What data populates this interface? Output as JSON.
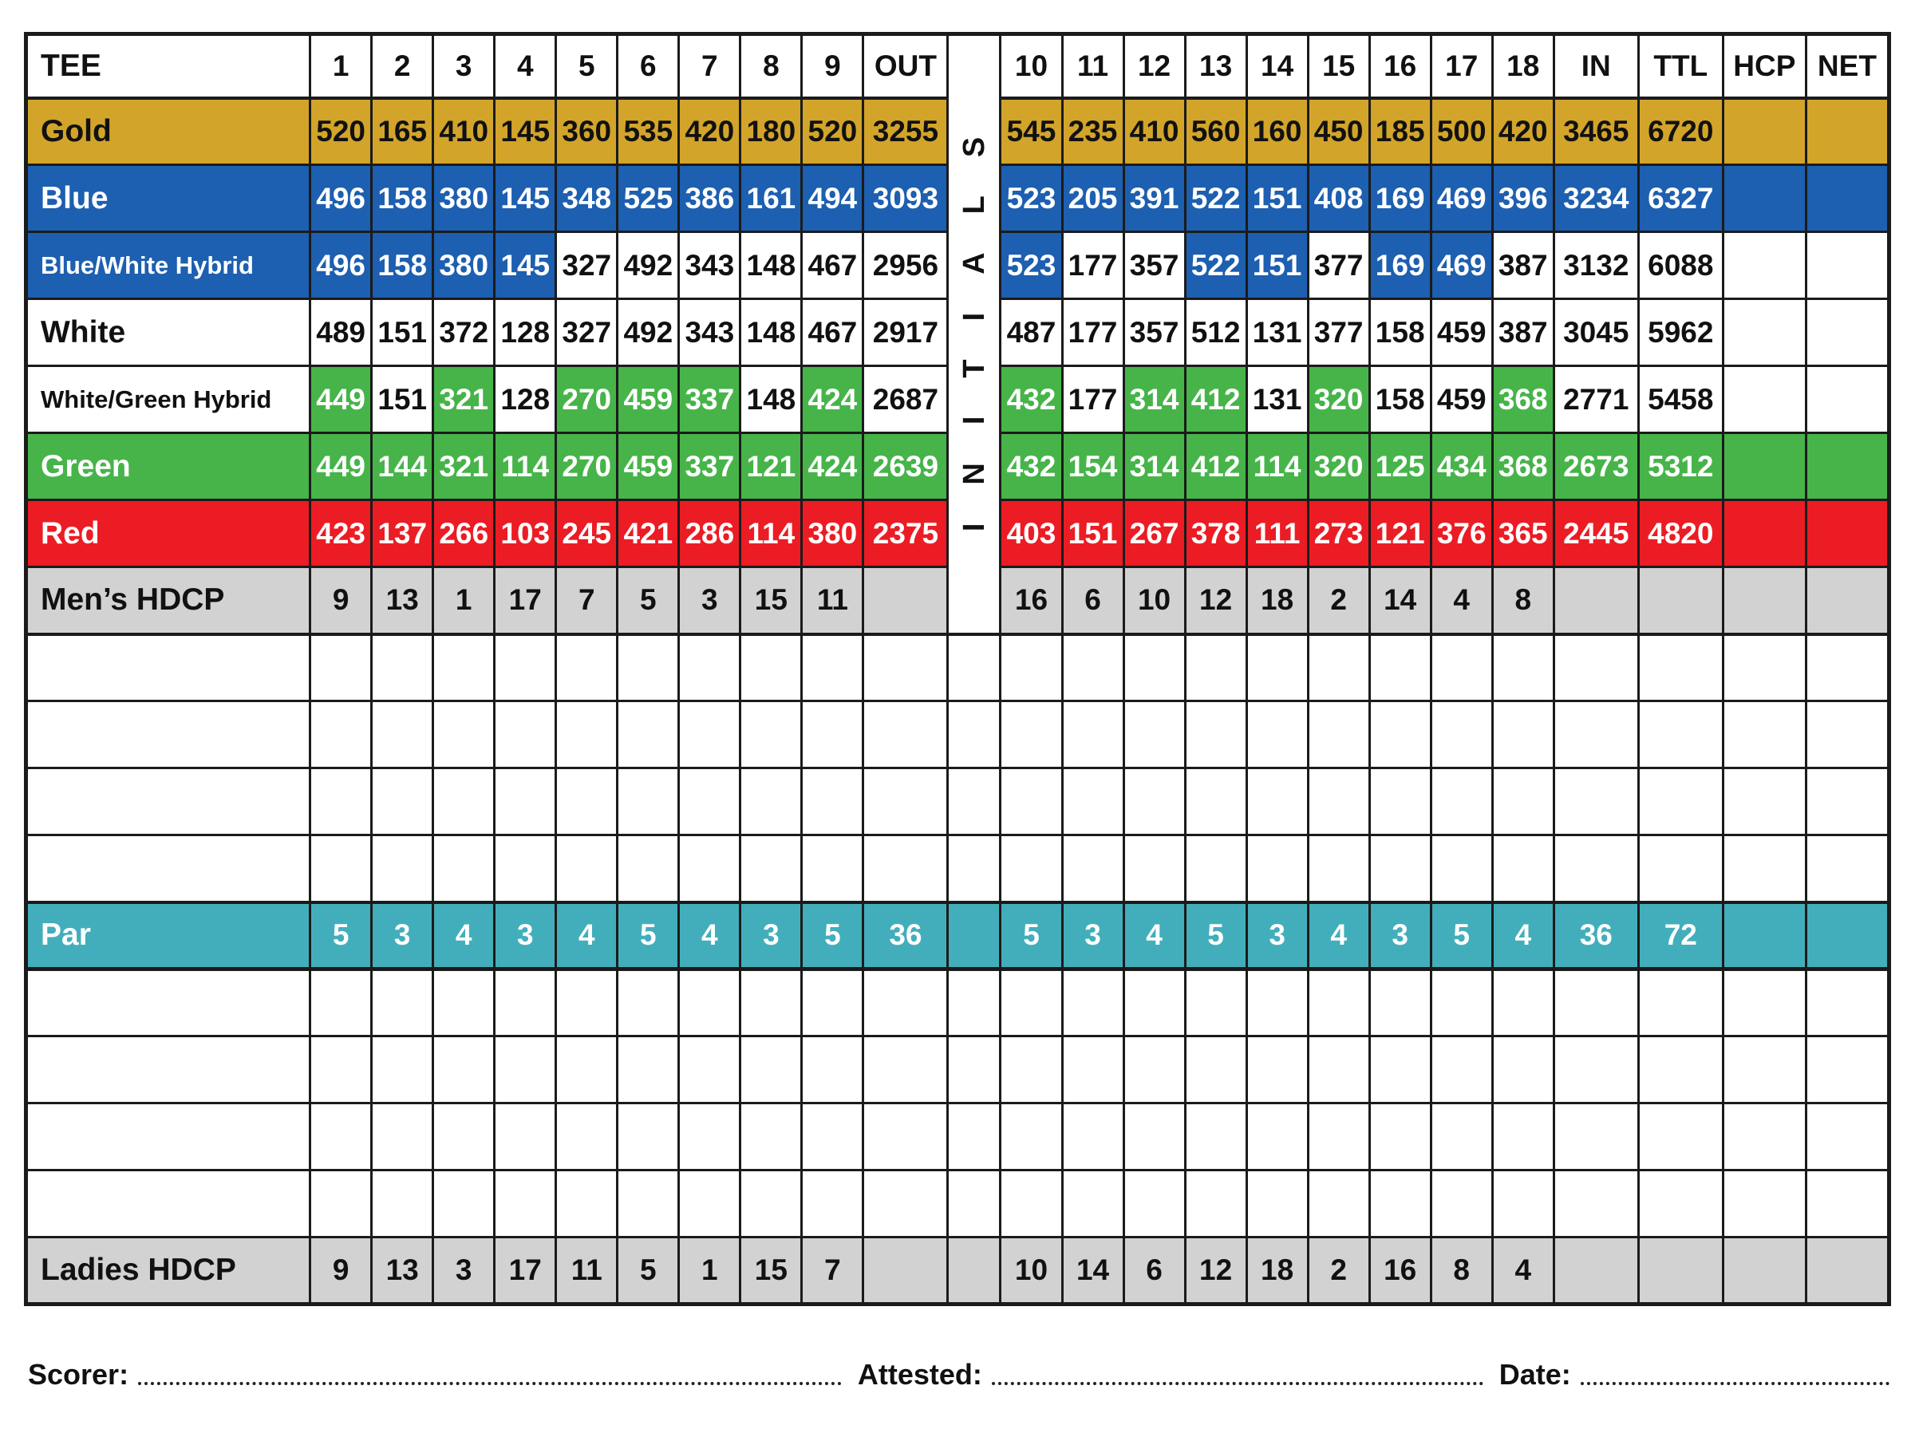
{
  "colors": {
    "gold": "#D2A429",
    "blue": "#1D5FB0",
    "green": "#47B44A",
    "red": "#EC1C24",
    "teal": "#43AEBB",
    "gray": "#D2D2D2",
    "border": "#1B1B1B"
  },
  "footer": {
    "scorer_label": "Scorer:",
    "attested_label": "Attested:",
    "date_label": "Date:"
  },
  "table": {
    "columns": [
      "tee",
      "hole-1",
      "hole-2",
      "hole-3",
      "hole-4",
      "hole-5",
      "hole-6",
      "hole-7",
      "hole-8",
      "hole-9",
      "out",
      "initials",
      "hole-10",
      "hole-11",
      "hole-12",
      "hole-13",
      "hole-14",
      "hole-15",
      "hole-16",
      "hole-17",
      "hole-18",
      "in",
      "ttl",
      "hcp",
      "net"
    ],
    "rows": [
      {
        "name": "header-row",
        "cells": [
          [
            "TEE",
            "h"
          ],
          [
            "1",
            "h"
          ],
          [
            "2",
            "h"
          ],
          [
            "3",
            "h"
          ],
          [
            "4",
            "h"
          ],
          [
            "5",
            "h"
          ],
          [
            "6",
            "h"
          ],
          [
            "7",
            "h"
          ],
          [
            "8",
            "h"
          ],
          [
            "9",
            "h"
          ],
          [
            "OUT",
            "h"
          ],
          {
            "t": "INITIALS",
            "s": "init",
            "rowspan": 9
          },
          [
            "10",
            "h"
          ],
          [
            "11",
            "h"
          ],
          [
            "12",
            "h"
          ],
          [
            "13",
            "h"
          ],
          [
            "14",
            "h"
          ],
          [
            "15",
            "h"
          ],
          [
            "16",
            "h"
          ],
          [
            "17",
            "h"
          ],
          [
            "18",
            "h"
          ],
          [
            "IN",
            "h"
          ],
          [
            "TTL",
            "h"
          ],
          [
            "HCP",
            "h"
          ],
          [
            "NET",
            "h"
          ]
        ]
      },
      {
        "name": "gold-row",
        "cells": [
          [
            "Gold",
            "g"
          ],
          [
            "520",
            "g"
          ],
          [
            "165",
            "g"
          ],
          [
            "410",
            "g"
          ],
          [
            "145",
            "g"
          ],
          [
            "360",
            "g"
          ],
          [
            "535",
            "g"
          ],
          [
            "420",
            "g"
          ],
          [
            "180",
            "g"
          ],
          [
            "520",
            "g"
          ],
          [
            "3255",
            "g"
          ],
          [
            "545",
            "g"
          ],
          [
            "235",
            "g"
          ],
          [
            "410",
            "g"
          ],
          [
            "560",
            "g"
          ],
          [
            "160",
            "g"
          ],
          [
            "450",
            "g"
          ],
          [
            "185",
            "g"
          ],
          [
            "500",
            "g"
          ],
          [
            "420",
            "g"
          ],
          [
            "3465",
            "g"
          ],
          [
            "6720",
            "g"
          ],
          [
            "",
            "g"
          ],
          [
            "",
            "g"
          ]
        ]
      },
      {
        "name": "blue-row",
        "cells": [
          [
            "Blue",
            "b"
          ],
          [
            "496",
            "b"
          ],
          [
            "158",
            "b"
          ],
          [
            "380",
            "b"
          ],
          [
            "145",
            "b"
          ],
          [
            "348",
            "b"
          ],
          [
            "525",
            "b"
          ],
          [
            "386",
            "b"
          ],
          [
            "161",
            "b"
          ],
          [
            "494",
            "b"
          ],
          [
            "3093",
            "b"
          ],
          [
            "523",
            "b"
          ],
          [
            "205",
            "b"
          ],
          [
            "391",
            "b"
          ],
          [
            "522",
            "b"
          ],
          [
            "151",
            "b"
          ],
          [
            "408",
            "b"
          ],
          [
            "169",
            "b"
          ],
          [
            "469",
            "b"
          ],
          [
            "396",
            "b"
          ],
          [
            "3234",
            "b"
          ],
          [
            "6327",
            "b"
          ],
          [
            "",
            "b"
          ],
          [
            "",
            "b"
          ]
        ]
      },
      {
        "name": "blue-white-hybrid-row",
        "cells": [
          [
            "Blue/White Hybrid",
            "b"
          ],
          [
            "496",
            "b"
          ],
          [
            "158",
            "b"
          ],
          [
            "380",
            "b"
          ],
          [
            "145",
            "b"
          ],
          [
            "327",
            "w"
          ],
          [
            "492",
            "w"
          ],
          [
            "343",
            "w"
          ],
          [
            "148",
            "w"
          ],
          [
            "467",
            "w"
          ],
          [
            "2956",
            "w"
          ],
          [
            "523",
            "b"
          ],
          [
            "177",
            "w"
          ],
          [
            "357",
            "w"
          ],
          [
            "522",
            "b"
          ],
          [
            "151",
            "b"
          ],
          [
            "377",
            "w"
          ],
          [
            "169",
            "b"
          ],
          [
            "469",
            "b"
          ],
          [
            "387",
            "w"
          ],
          [
            "3132",
            "w"
          ],
          [
            "6088",
            "w"
          ],
          [
            "",
            "w"
          ],
          [
            "",
            "w"
          ]
        ]
      },
      {
        "name": "white-row",
        "cells": [
          [
            "White",
            "w"
          ],
          [
            "489",
            "w"
          ],
          [
            "151",
            "w"
          ],
          [
            "372",
            "w"
          ],
          [
            "128",
            "w"
          ],
          [
            "327",
            "w"
          ],
          [
            "492",
            "w"
          ],
          [
            "343",
            "w"
          ],
          [
            "148",
            "w"
          ],
          [
            "467",
            "w"
          ],
          [
            "2917",
            "w"
          ],
          [
            "487",
            "w"
          ],
          [
            "177",
            "w"
          ],
          [
            "357",
            "w"
          ],
          [
            "512",
            "w"
          ],
          [
            "131",
            "w"
          ],
          [
            "377",
            "w"
          ],
          [
            "158",
            "w"
          ],
          [
            "459",
            "w"
          ],
          [
            "387",
            "w"
          ],
          [
            "3045",
            "w"
          ],
          [
            "5962",
            "w"
          ],
          [
            "",
            "w"
          ],
          [
            "",
            "w"
          ]
        ]
      },
      {
        "name": "white-green-hybrid-row",
        "cells": [
          [
            "White/Green Hybrid",
            "w"
          ],
          [
            "449",
            "gr"
          ],
          [
            "151",
            "w"
          ],
          [
            "321",
            "gr"
          ],
          [
            "128",
            "w"
          ],
          [
            "270",
            "gr"
          ],
          [
            "459",
            "gr"
          ],
          [
            "337",
            "gr"
          ],
          [
            "148",
            "w"
          ],
          [
            "424",
            "gr"
          ],
          [
            "2687",
            "w"
          ],
          [
            "432",
            "gr"
          ],
          [
            "177",
            "w"
          ],
          [
            "314",
            "gr"
          ],
          [
            "412",
            "gr"
          ],
          [
            "131",
            "w"
          ],
          [
            "320",
            "gr"
          ],
          [
            "158",
            "w"
          ],
          [
            "459",
            "w"
          ],
          [
            "368",
            "gr"
          ],
          [
            "2771",
            "w"
          ],
          [
            "5458",
            "w"
          ],
          [
            "",
            "w"
          ],
          [
            "",
            "w"
          ]
        ]
      },
      {
        "name": "green-row",
        "cells": [
          [
            "Green",
            "gr"
          ],
          [
            "449",
            "gr"
          ],
          [
            "144",
            "gr"
          ],
          [
            "321",
            "gr"
          ],
          [
            "114",
            "gr"
          ],
          [
            "270",
            "gr"
          ],
          [
            "459",
            "gr"
          ],
          [
            "337",
            "gr"
          ],
          [
            "121",
            "gr"
          ],
          [
            "424",
            "gr"
          ],
          [
            "2639",
            "gr"
          ],
          [
            "432",
            "gr"
          ],
          [
            "154",
            "gr"
          ],
          [
            "314",
            "gr"
          ],
          [
            "412",
            "gr"
          ],
          [
            "114",
            "gr"
          ],
          [
            "320",
            "gr"
          ],
          [
            "125",
            "gr"
          ],
          [
            "434",
            "gr"
          ],
          [
            "368",
            "gr"
          ],
          [
            "2673",
            "gr"
          ],
          [
            "5312",
            "gr"
          ],
          [
            "",
            "gr"
          ],
          [
            "",
            "gr"
          ]
        ]
      },
      {
        "name": "red-row",
        "cells": [
          [
            "Red",
            "r"
          ],
          [
            "423",
            "r"
          ],
          [
            "137",
            "r"
          ],
          [
            "266",
            "r"
          ],
          [
            "103",
            "r"
          ],
          [
            "245",
            "r"
          ],
          [
            "421",
            "r"
          ],
          [
            "286",
            "r"
          ],
          [
            "114",
            "r"
          ],
          [
            "380",
            "r"
          ],
          [
            "2375",
            "r"
          ],
          [
            "403",
            "r"
          ],
          [
            "151",
            "r"
          ],
          [
            "267",
            "r"
          ],
          [
            "378",
            "r"
          ],
          [
            "111",
            "r"
          ],
          [
            "273",
            "r"
          ],
          [
            "121",
            "r"
          ],
          [
            "376",
            "r"
          ],
          [
            "365",
            "r"
          ],
          [
            "2445",
            "r"
          ],
          [
            "4820",
            "r"
          ],
          [
            "",
            "r"
          ],
          [
            "",
            "r"
          ]
        ]
      },
      {
        "name": "mens-hdcp-row",
        "cells": [
          [
            "Men’s HDCP",
            "gy"
          ],
          [
            "9",
            "gy"
          ],
          [
            "13",
            "gy"
          ],
          [
            "1",
            "gy"
          ],
          [
            "17",
            "gy"
          ],
          [
            "7",
            "gy"
          ],
          [
            "5",
            "gy"
          ],
          [
            "3",
            "gy"
          ],
          [
            "15",
            "gy"
          ],
          [
            "11",
            "gy"
          ],
          [
            "",
            "gy"
          ],
          [
            "16",
            "gy"
          ],
          [
            "6",
            "gy"
          ],
          [
            "10",
            "gy"
          ],
          [
            "12",
            "gy"
          ],
          [
            "18",
            "gy"
          ],
          [
            "2",
            "gy"
          ],
          [
            "14",
            "gy"
          ],
          [
            "4",
            "gy"
          ],
          [
            "8",
            "gy"
          ],
          [
            "",
            "gy"
          ],
          [
            "",
            "gy"
          ],
          [
            "",
            "gy"
          ],
          [
            "",
            "gy"
          ]
        ]
      },
      {
        "name": "blank-row-1",
        "writable": true,
        "count": 25,
        "fill": {
          "t": "",
          "s": "w"
        }
      },
      {
        "name": "blank-row-2",
        "writable": true,
        "count": 25,
        "fill": {
          "t": "",
          "s": "w"
        }
      },
      {
        "name": "blank-row-3",
        "writable": true,
        "count": 25,
        "fill": {
          "t": "",
          "s": "w"
        }
      },
      {
        "name": "blank-row-4",
        "writable": true,
        "count": 25,
        "fill": {
          "t": "",
          "s": "w"
        }
      },
      {
        "name": "par-row",
        "cells": [
          [
            "Par",
            "t"
          ],
          [
            "5",
            "t"
          ],
          [
            "3",
            "t"
          ],
          [
            "4",
            "t"
          ],
          [
            "3",
            "t"
          ],
          [
            "4",
            "t"
          ],
          [
            "5",
            "t"
          ],
          [
            "4",
            "t"
          ],
          [
            "3",
            "t"
          ],
          [
            "5",
            "t"
          ],
          [
            "36",
            "t"
          ],
          [
            "",
            "t"
          ],
          [
            "5",
            "t"
          ],
          [
            "3",
            "t"
          ],
          [
            "4",
            "t"
          ],
          [
            "5",
            "t"
          ],
          [
            "3",
            "t"
          ],
          [
            "4",
            "t"
          ],
          [
            "3",
            "t"
          ],
          [
            "5",
            "t"
          ],
          [
            "4",
            "t"
          ],
          [
            "36",
            "t"
          ],
          [
            "72",
            "t"
          ],
          [
            "",
            "t"
          ],
          [
            "",
            "t"
          ]
        ]
      },
      {
        "name": "blank-row-5",
        "writable": true,
        "count": 25,
        "fill": {
          "t": "",
          "s": "w"
        }
      },
      {
        "name": "blank-row-6",
        "writable": true,
        "count": 25,
        "fill": {
          "t": "",
          "s": "w"
        }
      },
      {
        "name": "blank-row-7",
        "writable": true,
        "count": 25,
        "fill": {
          "t": "",
          "s": "w"
        }
      },
      {
        "name": "blank-row-8",
        "writable": true,
        "count": 25,
        "fill": {
          "t": "",
          "s": "w"
        }
      },
      {
        "name": "ladies-hdcp-row",
        "cells": [
          [
            "Ladies HDCP",
            "gy"
          ],
          [
            "9",
            "gy"
          ],
          [
            "13",
            "gy"
          ],
          [
            "3",
            "gy"
          ],
          [
            "17",
            "gy"
          ],
          [
            "11",
            "gy"
          ],
          [
            "5",
            "gy"
          ],
          [
            "1",
            "gy"
          ],
          [
            "15",
            "gy"
          ],
          [
            "7",
            "gy"
          ],
          [
            "",
            "gy"
          ],
          [
            "",
            "gy"
          ],
          [
            "10",
            "gy"
          ],
          [
            "14",
            "gy"
          ],
          [
            "6",
            "gy"
          ],
          [
            "12",
            "gy"
          ],
          [
            "18",
            "gy"
          ],
          [
            "2",
            "gy"
          ],
          [
            "16",
            "gy"
          ],
          [
            "8",
            "gy"
          ],
          [
            "4",
            "gy"
          ],
          [
            "",
            "gy"
          ],
          [
            "",
            "gy"
          ],
          [
            "",
            "gy"
          ],
          [
            "",
            "gy"
          ]
        ]
      }
    ]
  }
}
